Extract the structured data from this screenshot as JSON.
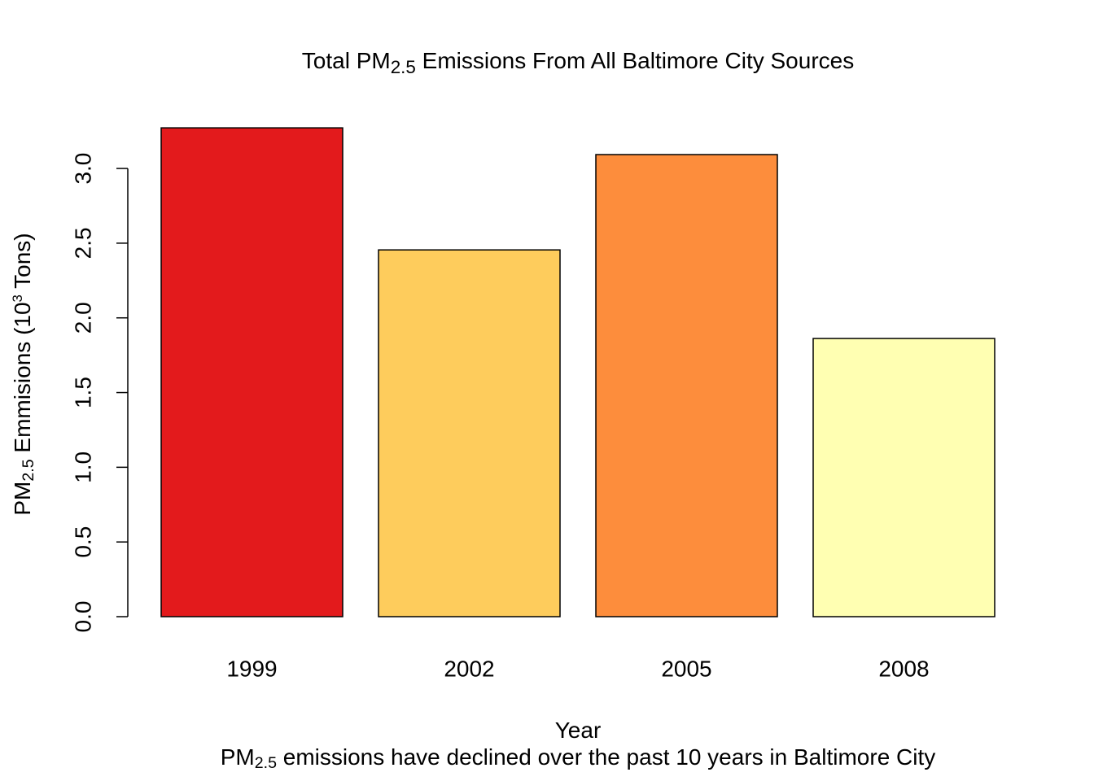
{
  "chart_data": {
    "type": "bar",
    "title": [
      {
        "text": "Total PM"
      },
      {
        "text": "2.5",
        "sub": true
      },
      {
        "text": " Emissions From All Baltimore City Sources"
      }
    ],
    "ylabel": [
      {
        "text": "PM"
      },
      {
        "text": "2.5",
        "sub": true
      },
      {
        "text": " Emmisions (10"
      },
      {
        "text": "3",
        "sup": true
      },
      {
        "text": " Tons)"
      }
    ],
    "xlabel": [
      {
        "text": "Year"
      }
    ],
    "subtitle": [
      {
        "text": "PM"
      },
      {
        "text": "2.5",
        "sub": true
      },
      {
        "text": " emissions have declined over the past 10 years in Baltimore City"
      }
    ],
    "categories": [
      "1999",
      "2002",
      "2005",
      "2008"
    ],
    "values": [
      3.272,
      2.455,
      3.093,
      1.862
    ],
    "colors": [
      "#e31a1c",
      "#fecc5c",
      "#fd8d3c",
      "#ffffb2"
    ],
    "ylim": [
      0,
      3.3
    ],
    "yticks": [
      {
        "value": 0,
        "label": "0.0"
      },
      0.5,
      {
        "value": 1,
        "label": "1.0"
      },
      1.5,
      {
        "value": 2,
        "label": "2.0"
      },
      2.5,
      {
        "value": 3,
        "label": "3.0"
      }
    ],
    "grid": false
  }
}
